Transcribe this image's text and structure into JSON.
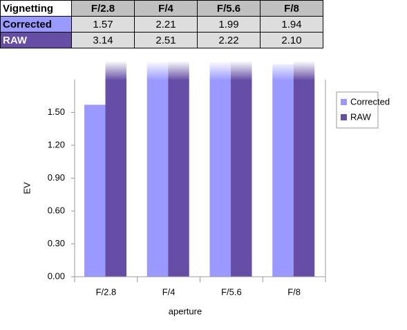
{
  "table_corner": "Vignetting",
  "chart_data": {
    "type": "bar",
    "categories": [
      "F/2.8",
      "F/4",
      "F/5.6",
      "F/8"
    ],
    "series": [
      {
        "name": "Corrected",
        "color": "#9999ff",
        "values": [
          1.57,
          2.21,
          1.99,
          1.94
        ],
        "value_labels": [
          "1.57",
          "2.21",
          "1.99",
          "1.94"
        ]
      },
      {
        "name": "RAW",
        "color": "#664ea6",
        "values": [
          3.14,
          2.51,
          2.22,
          2.1
        ],
        "value_labels": [
          "3.14",
          "2.51",
          "2.22",
          "2.10"
        ]
      }
    ],
    "y_label": "EV",
    "x_label": "aperture",
    "ylim": [
      0,
      1.8
    ],
    "yticks": [
      {
        "value": 0,
        "label": "0.00"
      },
      {
        "value": 0.3,
        "label": "0.30"
      },
      {
        "value": 0.6,
        "label": "0.60"
      },
      {
        "value": 0.9,
        "label": "0.90"
      },
      {
        "value": 1.2,
        "label": "1.20"
      },
      {
        "value": 1.5,
        "label": "1.50"
      }
    ],
    "legend": "right",
    "grid": false
  }
}
